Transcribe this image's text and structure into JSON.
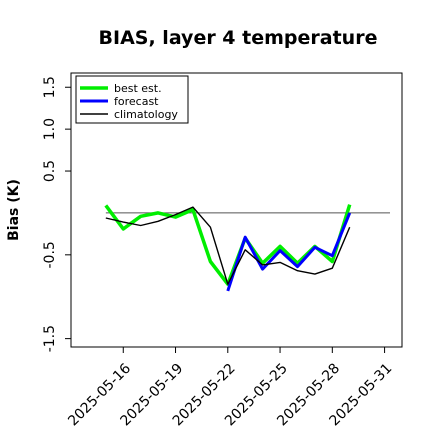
{
  "chart_data": {
    "type": "line",
    "title": "BIAS, layer 4 temperature",
    "xlabel": "",
    "ylabel": "Bias (K)",
    "xlim": [
      "2025-05-13",
      "2025-06-01"
    ],
    "ylim": [
      -1.6,
      1.67
    ],
    "yticks": [
      -1.5,
      -0.5,
      0.5,
      1.0,
      1.5
    ],
    "ytick_labels": [
      "-1.5",
      "-0.5",
      "0.5",
      "1.0",
      "1.5"
    ],
    "xticks": [
      "2025-05-16",
      "2025-05-19",
      "2025-05-22",
      "2025-05-25",
      "2025-05-28",
      "2025-05-31"
    ],
    "xtick_colors": [
      "#000000",
      "#000000",
      "#008000",
      "#000000",
      "#000000",
      "#000000"
    ],
    "reference_line": 0,
    "grid": false,
    "legend_position": "top-left",
    "x": [
      "2025-05-15",
      "2025-05-16",
      "2025-05-17",
      "2025-05-18",
      "2025-05-19",
      "2025-05-20",
      "2025-05-21",
      "2025-05-22",
      "2025-05-23",
      "2025-05-24",
      "2025-05-25",
      "2025-05-26",
      "2025-05-27",
      "2025-05-28",
      "2025-05-29"
    ],
    "series": [
      {
        "name": "best est.",
        "color": "#00ee00",
        "values": [
          0.09,
          -0.19,
          -0.04,
          0.0,
          -0.05,
          0.04,
          -0.58,
          -0.85,
          -0.3,
          -0.6,
          -0.4,
          -0.6,
          -0.4,
          -0.58,
          0.1
        ]
      },
      {
        "name": "forecast",
        "color": "#0000ff",
        "values": [
          null,
          null,
          null,
          null,
          null,
          null,
          null,
          -0.93,
          -0.29,
          -0.67,
          -0.45,
          -0.64,
          -0.41,
          -0.51,
          0.0
        ]
      },
      {
        "name": "climatology",
        "color": "#000000",
        "values": [
          -0.06,
          -0.11,
          -0.15,
          -0.1,
          -0.02,
          0.07,
          -0.17,
          -0.85,
          -0.44,
          -0.62,
          -0.59,
          -0.69,
          -0.73,
          -0.66,
          -0.17
        ]
      }
    ]
  }
}
